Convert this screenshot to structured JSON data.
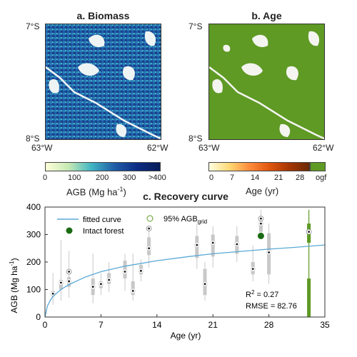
{
  "panel_a": {
    "title": "a. Biomass",
    "lat_top": "7°S",
    "lat_bottom": "8°S",
    "lon_left": "63°W",
    "lon_right": "62°W",
    "colorbar_ticks": [
      "0",
      "100",
      "200",
      "300",
      ">400"
    ],
    "colorbar_label": "AGB (Mg ha",
    "colorbar_label_sup": "-1",
    "colorbar_label_end": ")",
    "colormap": [
      "#ffffd9",
      "#c7e9b4",
      "#41b6c4",
      "#225ea8",
      "#0c2c84",
      "#081d58"
    ]
  },
  "panel_b": {
    "title": "b. Age",
    "lat_top": "7°S",
    "lat_bottom": "8°S",
    "lon_left": "63°W",
    "lon_right": "62°W",
    "colorbar_ticks": [
      "0",
      "7",
      "14",
      "21",
      "28",
      "ogf"
    ],
    "colorbar_label": "Age (yr)",
    "colormap": [
      "#ffffe0",
      "#fed976",
      "#fd8d3c",
      "#e0560e",
      "#a63603",
      "#6a2a04"
    ],
    "ogf_color": "#5e9a24"
  },
  "chart_data": {
    "type": "box",
    "title": "c. Recovery curve",
    "xlabel": "Age (yr)",
    "ylabel": "AGB (Mg ha",
    "ylabel_sup": "-1",
    "ylabel_end": ")",
    "xlim": [
      0,
      35
    ],
    "ylim": [
      0,
      400
    ],
    "xticks": [
      0,
      7,
      14,
      21,
      28,
      35
    ],
    "yticks": [
      0,
      100,
      200,
      300,
      400
    ],
    "legend": {
      "fitted": "fitted curve",
      "intact": "Intact forest",
      "agb95": "95% AGB",
      "agb95_sub": "grid"
    },
    "stats": {
      "r2_label": "R",
      "r2_sup": "2",
      "r2_value": " = 0.27",
      "rmse": "RMSE = 82.76"
    },
    "boxes": [
      {
        "age": 1,
        "q1": 75,
        "q3": 95,
        "median": 85,
        "wlo": 45,
        "whi": 160
      },
      {
        "age": 2,
        "q1": 100,
        "q3": 135,
        "median": 125,
        "wlo": 60,
        "whi": 280
      },
      {
        "age": 3,
        "q1": 110,
        "q3": 145,
        "median": 130,
        "wlo": 70,
        "whi": 240
      },
      {
        "age": 6,
        "q1": 80,
        "q3": 140,
        "median": 110,
        "wlo": 50,
        "whi": 230
      },
      {
        "age": 7,
        "q1": 105,
        "q3": 130,
        "median": 120,
        "wlo": 80,
        "whi": 160
      },
      {
        "age": 8,
        "q1": 120,
        "q3": 160,
        "median": 135,
        "wlo": 90,
        "whi": 200
      },
      {
        "age": 10,
        "q1": 140,
        "q3": 205,
        "median": 165,
        "wlo": 95,
        "whi": 230
      },
      {
        "age": 11,
        "q1": 80,
        "q3": 130,
        "median": 95,
        "wlo": 60,
        "whi": 230
      },
      {
        "age": 12,
        "q1": 155,
        "q3": 190,
        "median": 168,
        "wlo": 130,
        "whi": 210
      },
      {
        "age": 13,
        "q1": 225,
        "q3": 290,
        "median": 250,
        "wlo": 180,
        "whi": 330
      },
      {
        "age": 19,
        "q1": 215,
        "q3": 295,
        "median": 262,
        "wlo": 175,
        "whi": 340
      },
      {
        "age": 20,
        "q1": 80,
        "q3": 175,
        "median": 120,
        "wlo": 60,
        "whi": 200
      },
      {
        "age": 21,
        "q1": 220,
        "q3": 300,
        "median": 270,
        "wlo": 180,
        "whi": 330
      },
      {
        "age": 24,
        "q1": 230,
        "q3": 295,
        "median": 265,
        "wlo": 200,
        "whi": 330
      },
      {
        "age": 26,
        "q1": 155,
        "q3": 200,
        "median": 175,
        "wlo": 130,
        "whi": 260
      },
      {
        "age": 27,
        "q1": 310,
        "q3": 360,
        "median": 340,
        "wlo": 290,
        "whi": 390
      },
      {
        "age": 28,
        "q1": 155,
        "q3": 305,
        "median": 235,
        "wlo": 120,
        "whi": 340
      }
    ],
    "agb95_points": [
      {
        "age": 3,
        "value": 165
      },
      {
        "age": 13,
        "value": 322
      },
      {
        "age": 27,
        "value": 358
      }
    ],
    "intact_forest": {
      "age": 27,
      "value": 295
    },
    "ogf_box": {
      "age": 33,
      "q1": 270,
      "q3": 340,
      "median": 310,
      "wlo": 0,
      "whi": 390
    },
    "ogf_agb95": {
      "age": 33,
      "value": 310
    },
    "fitted_curve": [
      [
        0,
        0
      ],
      [
        0.3,
        40
      ],
      [
        0.7,
        62
      ],
      [
        1,
        75
      ],
      [
        2,
        100
      ],
      [
        3,
        118
      ],
      [
        5,
        145
      ],
      [
        7,
        165
      ],
      [
        10,
        185
      ],
      [
        14,
        205
      ],
      [
        18,
        220
      ],
      [
        21,
        230
      ],
      [
        25,
        240
      ],
      [
        28,
        247
      ],
      [
        31,
        253
      ],
      [
        35,
        262
      ]
    ],
    "colors": {
      "box": "#c8c8c8",
      "ogf": "#5e9a24",
      "intact": "#1a6b14",
      "curve": "#5aa9d6",
      "outlier": "#bdbdbd"
    }
  }
}
